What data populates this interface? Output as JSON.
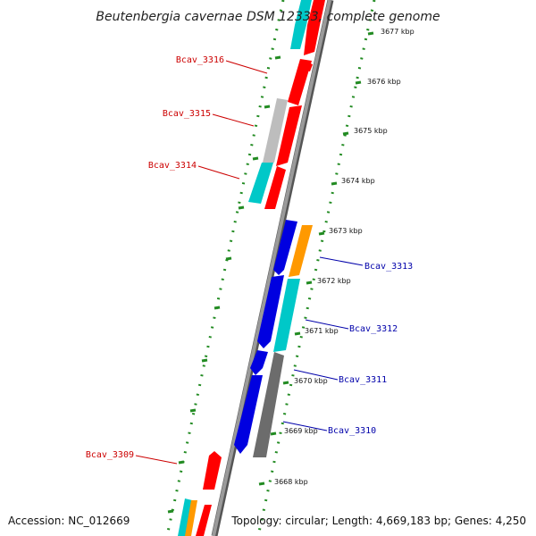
{
  "title": "Beutenbergia cavernae DSM 12333, complete genome",
  "footer": {
    "accession": "Accession: NC_012669",
    "summary": "Topology: circular; Length: 4,669,183 bp; Genes: 4,250"
  },
  "scale_labels": [
    "3677 kbp",
    "3676 kbp",
    "3675 kbp",
    "3674 kbp",
    "3673 kbp",
    "3672 kbp",
    "3671 kbp",
    "3670 kbp",
    "3669 kbp",
    "3668 kbp"
  ],
  "genes": [
    {
      "label": "Bcav_3316",
      "strand": "left"
    },
    {
      "label": "Bcav_3315",
      "strand": "left"
    },
    {
      "label": "Bcav_3314",
      "strand": "left"
    },
    {
      "label": "Bcav_3313",
      "strand": "right"
    },
    {
      "label": "Bcav_3312",
      "strand": "right"
    },
    {
      "label": "Bcav_3311",
      "strand": "right"
    },
    {
      "label": "Bcav_3310",
      "strand": "right"
    },
    {
      "label": "Bcav_3309",
      "strand": "left"
    }
  ],
  "colors": {
    "red": "#ff0000",
    "cyan": "#00c8c8",
    "blue": "#0000e0",
    "orange": "#ff9900",
    "gray": "#707070",
    "lightgray": "#bdbdbd",
    "track_green": "#228b22",
    "left_label": "#cc0000",
    "right_label": "#0000aa"
  }
}
